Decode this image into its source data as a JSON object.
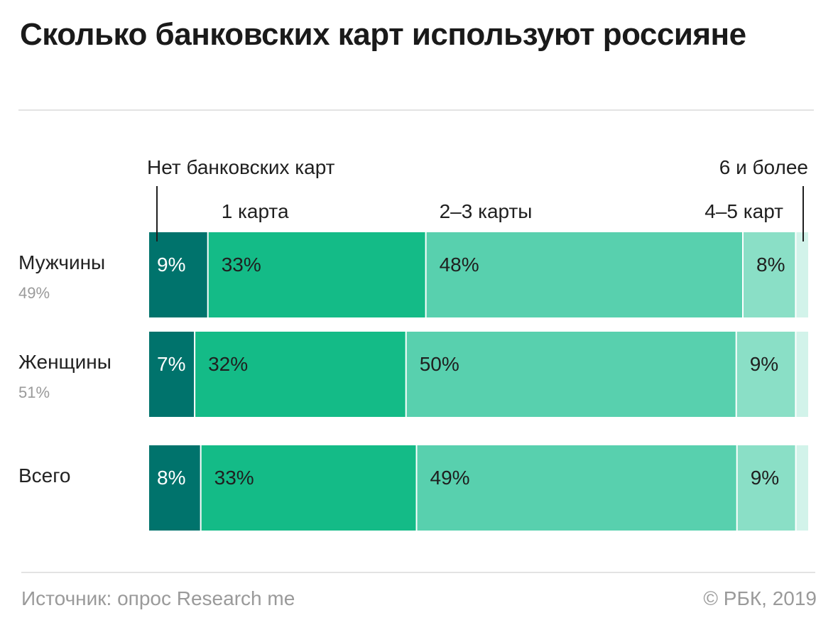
{
  "title": "Сколько банковских карт используют россияне",
  "footer": {
    "source": "Источник: опрос Research me",
    "copyright": "© РБК, 2019"
  },
  "colors": [
    "#00736c",
    "#14bb87",
    "#58d0ae",
    "#8adfc6",
    "#d2f3ea"
  ],
  "chart_data": {
    "type": "bar",
    "orientation": "horizontal",
    "stacked": true,
    "normalized_to": 100,
    "title": "Сколько банковских карт используют россияне",
    "categories": [
      {
        "label": "Мужчины",
        "share": "49%"
      },
      {
        "label": "Женщины",
        "share": "51%"
      },
      {
        "label": "Всего",
        "share": ""
      }
    ],
    "series": [
      {
        "name": "Нет банковских карт",
        "values": [
          9,
          7,
          8
        ],
        "labels": [
          "9%",
          "7%",
          "8%"
        ]
      },
      {
        "name": "1 карта",
        "values": [
          33,
          32,
          33
        ],
        "labels": [
          "33%",
          "32%",
          "33%"
        ]
      },
      {
        "name": "2–3 карты",
        "values": [
          48,
          50,
          49
        ],
        "labels": [
          "48%",
          "50%",
          "49%"
        ]
      },
      {
        "name": "4–5 карт",
        "values": [
          8,
          9,
          9
        ],
        "labels": [
          "8%",
          "9%",
          "9%"
        ]
      },
      {
        "name": "6 и более",
        "values": [
          2,
          2,
          2
        ],
        "labels": [
          "",
          "",
          ""
        ]
      }
    ],
    "legend_placement": "top, above bars",
    "grid": false
  }
}
